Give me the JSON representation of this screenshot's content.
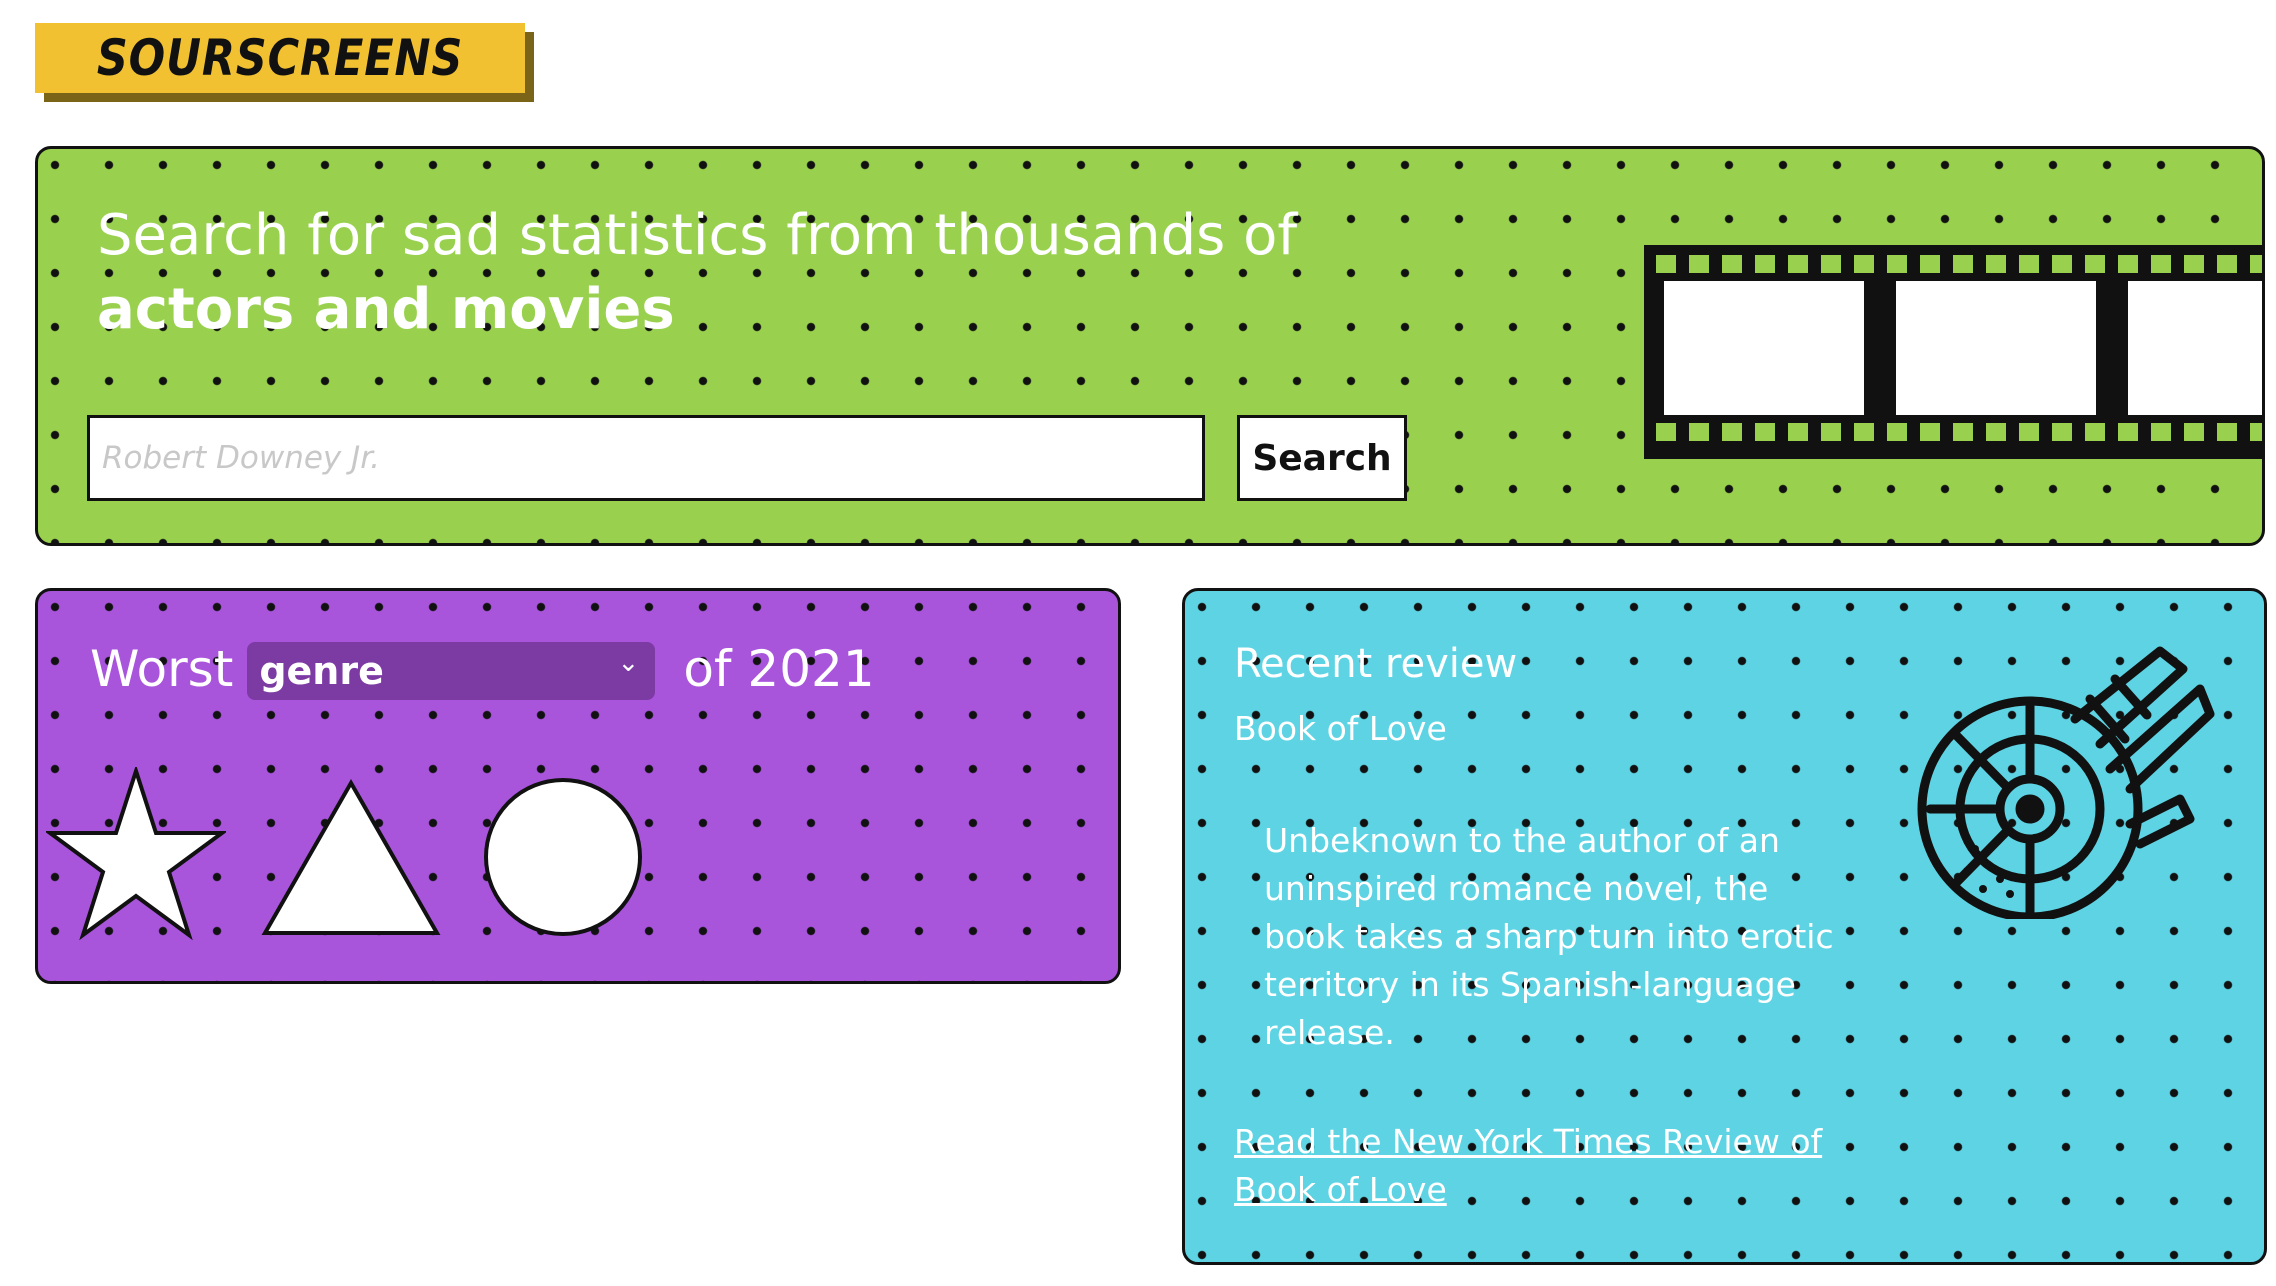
{
  "app": {
    "logo": "SOURSCREENS"
  },
  "hero": {
    "title_line1": "Search for sad statistics from thousands of",
    "title_line2": "actors and movies",
    "search_placeholder": "Robert Downey Jr.",
    "search_value": "",
    "search_button": "Search",
    "icon": "film-strip-icon"
  },
  "worst": {
    "prefix": "Worst",
    "select_value": "genre",
    "options": [
      "genre"
    ],
    "suffix": "of 2021",
    "shapes": [
      "star-icon",
      "triangle-icon",
      "circle-icon"
    ]
  },
  "review": {
    "heading": "Recent review",
    "movie": "Book of Love",
    "summary": "Unbeknown to the author of an uninspired romance novel, the book takes a sharp turn into erotic territory in its Spanish-language release.",
    "link_text": "Read the New York Times Review of Book of Love",
    "icon": "millennium-falcon-icon"
  },
  "colors": {
    "logo_bg": "#f2c132",
    "hero_bg": "#99d14f",
    "worst_bg": "#a855dc",
    "select_bg": "#7c3aa3",
    "review_bg": "#5dd3e3"
  }
}
